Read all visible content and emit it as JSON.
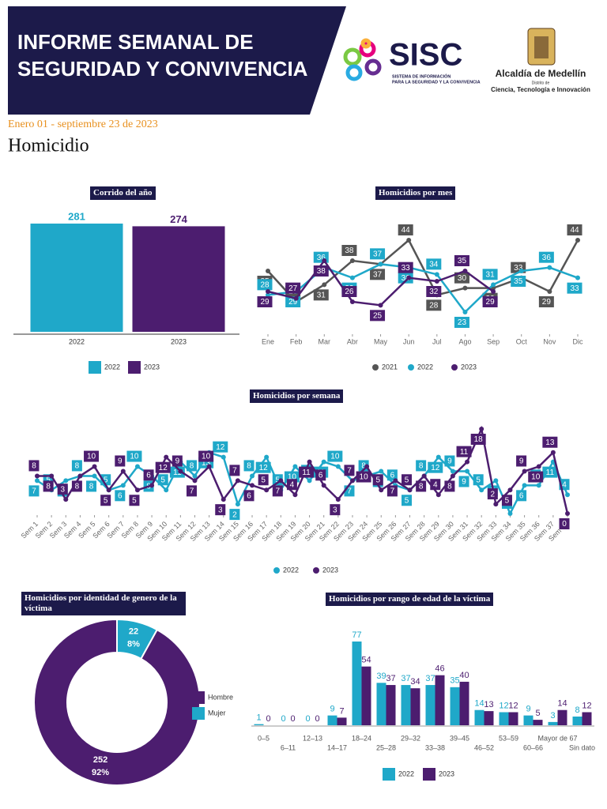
{
  "header": {
    "title_lines": [
      "INFORME SEMANAL DE",
      "SEGURIDAD Y CONVIVENCIA"
    ],
    "logo": {
      "name": "SISC",
      "tagline_lines": [
        "SISTEMA DE INFORMACIÓN",
        "PARA LA SEGURIDAD Y LA CONVIVENCIA"
      ]
    },
    "city": {
      "name": "Alcaldía de Medellín",
      "subtitle": "Distrito de",
      "tagline": "Ciencia, Tecnología e Innovación"
    }
  },
  "date_range": "Enero 01 - septiembre 23 de 2023",
  "section": "Homicidio",
  "chart_data": [
    {
      "type": "bar",
      "title": "Corrido del año",
      "categories": [
        "2022",
        "2023"
      ],
      "values": [
        281,
        274
      ],
      "colors": [
        "#1fa8c9",
        "#4c1d6f"
      ]
    },
    {
      "type": "line",
      "title": "Homicidios por mes",
      "categories": [
        "Ene",
        "Feb",
        "Mar",
        "Abr",
        "May",
        "Jun",
        "Jul",
        "Ago",
        "Sep",
        "Oct",
        "Nov",
        "Dic"
      ],
      "series": [
        {
          "name": "2021",
          "color": "#555555",
          "values": [
            35,
            26,
            31,
            38,
            37,
            44,
            28,
            30,
            30,
            33,
            29,
            44
          ]
        },
        {
          "name": "2022",
          "color": "#1fa8c9",
          "values": [
            28,
            29,
            36,
            33,
            37,
            36,
            34,
            23,
            31,
            35,
            36,
            33
          ]
        },
        {
          "name": "2023",
          "color": "#4c1d6f",
          "values": [
            29,
            27,
            38,
            26,
            25,
            33,
            32,
            35,
            29,
            null,
            null,
            null
          ]
        }
      ],
      "legend": "bottom"
    },
    {
      "type": "line",
      "title": "Homicidios por semana",
      "categories": [
        "Sem 1",
        "Sem 2",
        "Sem 3",
        "Sem 4",
        "Sem 5",
        "Sem 6",
        "Sem 7",
        "Sem 8",
        "Sem 9",
        "Sem 10",
        "Sem 11",
        "Sem 12",
        "Sem 13",
        "Sem 14",
        "Sem 15",
        "Sem 16",
        "Sem 17",
        "Sem 18",
        "Sem 19",
        "Sem 20",
        "Sem 21",
        "Sem 22",
        "Sem 23",
        "Sem 24",
        "Sem 25",
        "Sem 26",
        "Sem 27",
        "Sem 28",
        "Sem 29",
        "Sem 30",
        "Sem 31",
        "Sem 32",
        "Sem 33",
        "Sem 34",
        "Sem 35",
        "Sem 36",
        "Sem 37",
        "Sem 38"
      ],
      "series": [
        {
          "name": "2022",
          "color": "#1fa8c9",
          "values": [
            7,
            5,
            7,
            8,
            8,
            5,
            6,
            10,
            8,
            5,
            11,
            8,
            13,
            12,
            2,
            8,
            12,
            5,
            10,
            7,
            11,
            10,
            7,
            8,
            9,
            6,
            5,
            8,
            12,
            9,
            9,
            5,
            7,
            0,
            6,
            6,
            11,
            4
          ]
        },
        {
          "name": "2023",
          "color": "#4c1d6f",
          "values": [
            8,
            8,
            3,
            8,
            10,
            5,
            9,
            5,
            6,
            12,
            9,
            7,
            10,
            3,
            7,
            6,
            5,
            7,
            4,
            11,
            6,
            3,
            7,
            10,
            5,
            7,
            5,
            8,
            4,
            8,
            11,
            18,
            2,
            5,
            9,
            10,
            13,
            0
          ]
        }
      ],
      "legend": "bottom"
    },
    {
      "type": "pie",
      "donut": true,
      "title": "Homicidios por identidad de genero de la víctima",
      "categories": [
        "Hombre",
        "Mujer"
      ],
      "values": [
        252,
        22
      ],
      "percent_labels": [
        "92%",
        "8%"
      ],
      "colors": [
        "#4c1d6f",
        "#1fa8c9"
      ],
      "legend": "right"
    },
    {
      "type": "grouped_bar",
      "title": "Homicidios por rango de edad de la víctima",
      "categories": [
        "0–5",
        "6–11",
        "12–13",
        "14–17",
        "18–24",
        "25–28",
        "29–32",
        "33–38",
        "39–45",
        "46–52",
        "53–59",
        "60–66",
        "Mayor de 67",
        "Sin dato"
      ],
      "series": [
        {
          "name": "2022",
          "color": "#1fa8c9",
          "values": [
            1,
            0,
            0,
            9,
            77,
            39,
            37,
            37,
            35,
            14,
            12,
            9,
            3,
            8
          ]
        },
        {
          "name": "2023",
          "color": "#4c1d6f",
          "values": [
            0,
            0,
            0,
            7,
            54,
            37,
            34,
            46,
            40,
            13,
            12,
            5,
            14,
            12
          ]
        }
      ],
      "legend": "bottom"
    }
  ]
}
